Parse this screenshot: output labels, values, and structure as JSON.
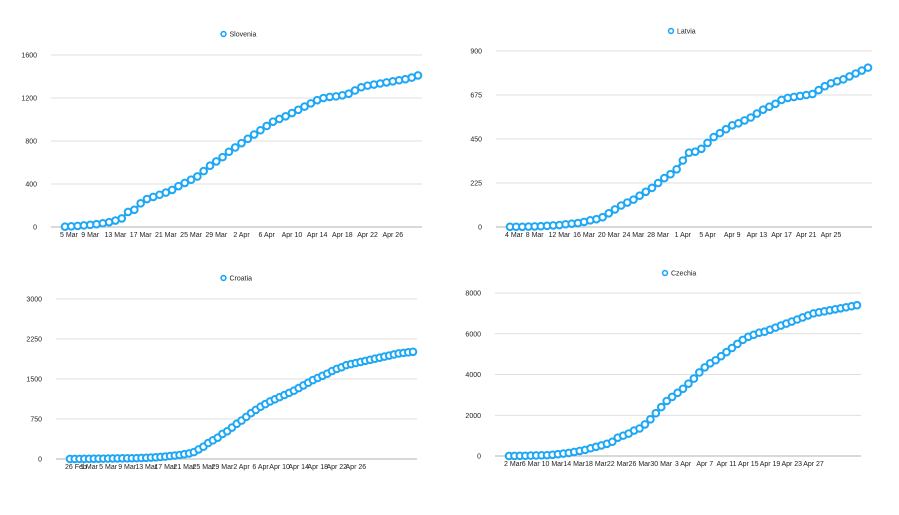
{
  "colors": {
    "series": "#1ea7f5",
    "grid": "#d4d4d4",
    "text": "#222222"
  },
  "chart_data": [
    {
      "type": "line",
      "title": "",
      "series": [
        {
          "name": "Slovenia",
          "values": [
            3,
            6,
            10,
            15,
            20,
            26,
            35,
            45,
            60,
            80,
            140,
            160,
            220,
            260,
            280,
            300,
            320,
            345,
            380,
            410,
            440,
            470,
            520,
            570,
            610,
            650,
            700,
            740,
            780,
            820,
            860,
            900,
            940,
            980,
            1005,
            1030,
            1060,
            1090,
            1120,
            1150,
            1180,
            1200,
            1210,
            1215,
            1225,
            1240,
            1270,
            1300,
            1315,
            1325,
            1335,
            1345,
            1355,
            1365,
            1375,
            1390,
            1410
          ]
        }
      ],
      "x_first": "5 Mar",
      "x_ticks": [
        "5 Mar",
        "9 Mar",
        "13 Mar",
        "17 Mar",
        "21 Mar",
        "25 Mar",
        "29 Mar",
        "2 Apr",
        "6 Apr",
        "Apr 10",
        "Apr 14",
        "Apr 18",
        "Apr 22",
        "Apr 26"
      ],
      "y_ticks": [
        "0",
        "400",
        "800",
        "1200",
        "1600"
      ],
      "ylim": [
        0,
        1600
      ],
      "legend": "top-center",
      "grid": true
    },
    {
      "type": "line",
      "title": "",
      "series": [
        {
          "name": "Latvia",
          "values": [
            1,
            1,
            1,
            2,
            3,
            4,
            6,
            8,
            10,
            14,
            17,
            20,
            26,
            34,
            40,
            50,
            70,
            90,
            110,
            125,
            140,
            160,
            180,
            200,
            225,
            250,
            270,
            295,
            340,
            380,
            385,
            400,
            430,
            460,
            480,
            500,
            520,
            530,
            545,
            560,
            580,
            600,
            615,
            630,
            650,
            660,
            665,
            670,
            675,
            680,
            700,
            720,
            735,
            745,
            755,
            770,
            785,
            800,
            815
          ]
        }
      ],
      "x_first": "4 Mar",
      "x_ticks": [
        "4 Mar",
        "8 Mar",
        "12 Mar",
        "16 Mar",
        "20 Mar",
        "24 Mar",
        "28 Mar",
        "1 Apr",
        "5 Apr",
        "Apr 9",
        "Apr 13",
        "Apr 17",
        "Apr 21",
        "Apr 25"
      ],
      "y_ticks": [
        "0",
        "225",
        "450",
        "675",
        "900"
      ],
      "ylim": [
        0,
        900
      ],
      "legend": "top-center",
      "grid": true
    },
    {
      "type": "line",
      "title": "",
      "series": [
        {
          "name": "Croatia",
          "values": [
            1,
            1,
            2,
            3,
            3,
            5,
            6,
            7,
            9,
            10,
            11,
            12,
            13,
            14,
            16,
            19,
            22,
            27,
            32,
            38,
            45,
            56,
            65,
            75,
            90,
            105,
            130,
            180,
            230,
            300,
            350,
            400,
            470,
            520,
            590,
            660,
            720,
            790,
            860,
            920,
            980,
            1030,
            1080,
            1120,
            1160,
            1200,
            1240,
            1280,
            1330,
            1380,
            1430,
            1480,
            1520,
            1560,
            1600,
            1650,
            1690,
            1720,
            1760,
            1780,
            1800,
            1820,
            1840,
            1860,
            1880,
            1900,
            1920,
            1940,
            1960,
            1980,
            1990,
            2000,
            2010
          ]
        }
      ],
      "x_first": "26 Feb",
      "x_ticks": [
        "26 Feb",
        "1 Mar",
        "5 Mar",
        "9 Mar",
        "13 Mar",
        "17 Mar",
        "21 Mar",
        "25 Mar",
        "29 Mar",
        "2 Apr",
        "6 Apr",
        "Apr 10",
        "Apr 14",
        "Apr 18",
        "Apr 22",
        "Apr 26"
      ],
      "y_ticks": [
        "0",
        "750",
        "1500",
        "2250",
        "3000"
      ],
      "ylim": [
        0,
        3000
      ],
      "legend": "top-center",
      "grid": true
    },
    {
      "type": "line",
      "title": "",
      "series": [
        {
          "name": "Czechia",
          "values": [
            3,
            5,
            8,
            12,
            20,
            26,
            32,
            40,
            60,
            90,
            120,
            150,
            200,
            250,
            300,
            380,
            450,
            520,
            600,
            700,
            900,
            1000,
            1100,
            1250,
            1350,
            1550,
            1800,
            2100,
            2400,
            2700,
            2900,
            3100,
            3300,
            3550,
            3800,
            4100,
            4350,
            4550,
            4700,
            4900,
            5100,
            5300,
            5500,
            5700,
            5850,
            5950,
            6050,
            6100,
            6200,
            6300,
            6400,
            6500,
            6600,
            6700,
            6800,
            6900,
            7000,
            7050,
            7100,
            7150,
            7200,
            7250,
            7300,
            7350,
            7400
          ]
        }
      ],
      "x_first": "2 Mar",
      "x_ticks": [
        "2 Mar",
        "6 Mar",
        "10 Mar",
        "14 Mar",
        "18 Mar",
        "22 Mar",
        "26 Mar",
        "30 Mar",
        "3 Apr",
        "Apr 7",
        "Apr 11",
        "Apr 15",
        "Apr 19",
        "Apr 23",
        "Apr 27"
      ],
      "y_ticks": [
        "0",
        "2000",
        "4000",
        "6000",
        "8000"
      ],
      "ylim": [
        0,
        8000
      ],
      "legend": "top-center",
      "grid": true
    }
  ]
}
